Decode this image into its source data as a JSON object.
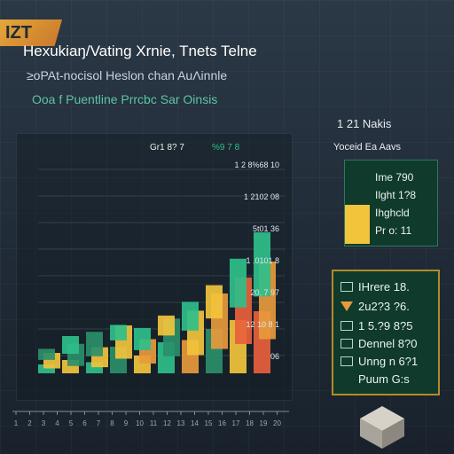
{
  "header": {
    "logo_text": "IZT",
    "title": "Hexukiaŋ/Vating Xrnie, Tnets Telne",
    "subtitle": "≥oPAt-nocisol Heslon chan AuΛinnle",
    "tagline": "Ooa f Puentline Prrcbc Sar Oinsis"
  },
  "chart_data": {
    "type": "bar",
    "top_labels": [
      "Gr1 8? 7",
      "%9 7 8"
    ],
    "value_labels": [
      "1 2 8%68 10",
      "1 2102 08",
      "5t01 36",
      "1 .0101 8",
      "20. 7 97",
      "12 10 8 1",
      "06"
    ],
    "bars": [
      {
        "x": 0,
        "values": [
          8,
          14,
          10
        ],
        "colors": [
          "#2fbf8a",
          "#f2c43c",
          "#2a8f6a"
        ]
      },
      {
        "x": 1,
        "values": [
          12,
          20,
          16
        ],
        "colors": [
          "#f2c43c",
          "#2a8f6a",
          "#2fbf8a"
        ]
      },
      {
        "x": 2,
        "values": [
          10,
          18,
          22
        ],
        "colors": [
          "#2fbf8a",
          "#f2c43c",
          "#2a8f6a"
        ]
      },
      {
        "x": 3,
        "values": [
          24,
          30,
          14
        ],
        "colors": [
          "#2a8f6a",
          "#f2c43c",
          "#2fbf8a"
        ]
      },
      {
        "x": 4,
        "values": [
          16,
          22,
          20
        ],
        "colors": [
          "#f2c43c",
          "#e89a3c",
          "#2fbf8a"
        ]
      },
      {
        "x": 5,
        "values": [
          28,
          34,
          18
        ],
        "colors": [
          "#2fbf8a",
          "#2a8f6a",
          "#f2c43c"
        ]
      },
      {
        "x": 6,
        "values": [
          30,
          40,
          26
        ],
        "colors": [
          "#e89a3c",
          "#f2c43c",
          "#2fbf8a"
        ]
      },
      {
        "x": 7,
        "values": [
          40,
          50,
          30
        ],
        "colors": [
          "#2a8f6a",
          "#e89a3c",
          "#f2c43c"
        ]
      },
      {
        "x": 8,
        "values": [
          48,
          60,
          44
        ],
        "colors": [
          "#f2c43c",
          "#e8613c",
          "#2fbf8a"
        ]
      },
      {
        "x": 9,
        "values": [
          56,
          70,
          58
        ],
        "colors": [
          "#e8613c",
          "#e89a3c",
          "#2fbf8a"
        ]
      }
    ],
    "ylim": [
      0,
      100
    ]
  },
  "right_panel": {
    "header": "1 21 Nakis",
    "legend_header": "Yoceid Ea Aavs",
    "legend_items": [
      "Ime 790",
      "Ilght 1?8",
      "Ihghcld",
      "Pr o: 11"
    ],
    "info_items": [
      {
        "icon": "list-icon",
        "text": "IHrere 18."
      },
      {
        "icon": "warning-icon",
        "text": "2u2?3 ?6."
      },
      {
        "icon": "list-icon",
        "text": "1 5.?9 8?5"
      },
      {
        "icon": "list-icon",
        "text": "Dennel 8?0"
      },
      {
        "icon": "list-icon",
        "text": "Unng n 6?1"
      },
      {
        "icon": "list-icon",
        "text": "Puum G:s"
      }
    ]
  },
  "x_ticks": [
    "1",
    "2",
    "3",
    "4",
    "5",
    "6",
    "7",
    "8",
    "9",
    "10",
    "11",
    "12",
    "13",
    "14",
    "15",
    "16",
    "17",
    "18",
    "19",
    "20"
  ],
  "colors": {
    "accent": "#f2c43c",
    "green": "#2fbf8a",
    "panel": "#0f3a2c",
    "border_gold": "#b48a2a"
  }
}
